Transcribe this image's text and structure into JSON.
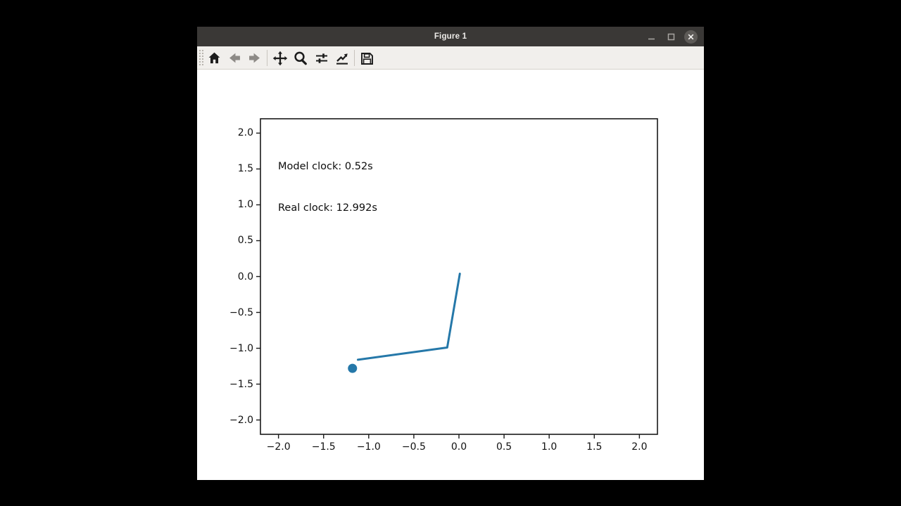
{
  "window": {
    "title": "Figure 1",
    "controls": [
      "minimize",
      "maximize",
      "close"
    ]
  },
  "toolbar": {
    "icons": [
      "home",
      "back",
      "forward",
      "pan",
      "zoom-to-rect",
      "configure-subplots",
      "edit-parameters",
      "save"
    ]
  },
  "chart_data": {
    "type": "line",
    "title": "",
    "xlabel": "",
    "ylabel": "",
    "grid": false,
    "legend": null,
    "annotations": [
      "Model clock: 0.52s",
      "Real clock: 12.992s"
    ],
    "xlim": [
      -2.2,
      2.2
    ],
    "ylim": [
      -2.2,
      2.2
    ],
    "xticks": [
      -2.0,
      -1.5,
      -1.0,
      -0.5,
      0.0,
      0.5,
      1.0,
      1.5,
      2.0
    ],
    "yticks": [
      2.0,
      1.5,
      1.0,
      0.5,
      0.0,
      -0.5,
      -1.0,
      -1.5,
      -2.0
    ],
    "xticklabels": [
      "−2.0",
      "−1.5",
      "−1.0",
      "−0.5",
      "0.0",
      "0.5",
      "1.0",
      "1.5",
      "2.0"
    ],
    "yticklabels": [
      "2.0",
      "1.5",
      "1.0",
      "0.5",
      "0.0",
      "−0.5",
      "−1.0",
      "−1.5",
      "−2.0"
    ],
    "series": [
      {
        "name": "pendulum-rods",
        "color": "#2578a9",
        "linewidth": 3,
        "x": [
          0.01,
          -0.13,
          -1.12
        ],
        "y": [
          0.04,
          -0.99,
          -1.16
        ]
      }
    ],
    "marker": {
      "name": "pendulum-bob",
      "color": "#2578a9",
      "x": -1.18,
      "y": -1.28,
      "radius_px": 6.5
    }
  }
}
